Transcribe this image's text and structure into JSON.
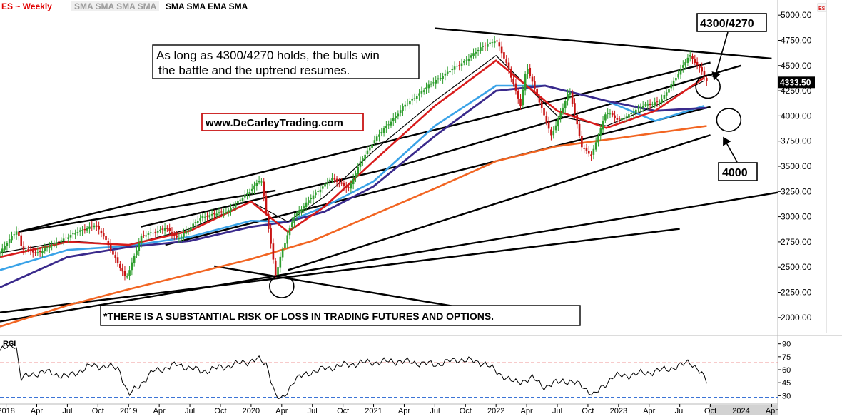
{
  "header": {
    "symbol": "ES ~ Weekly",
    "studies_gray": "SMA SMA SMA SMA",
    "studies_black": "SMA SMA EMA SMA",
    "corner_flag": "ES"
  },
  "annotations": {
    "main_note_line1": "As long as 4300/4270 holds, the bulls win",
    "main_note_line2": "the battle and the uptrend resumes.",
    "website": "www.DeCarleyTrading.com",
    "level_upper": "4300/4270",
    "level_lower": "4000",
    "disclaimer": "*THERE IS A SUBSTANTIAL RISK OF LOSS IN TRADING FUTURES AND OPTIONS."
  },
  "colors": {
    "up_candle": "#2e9e2e",
    "down_candle": "#c81414",
    "sma_black": "#000000",
    "ema_red": "#d81c1c",
    "sma_blue": "#3aa3e8",
    "sma_navy": "#3a2a8c",
    "sma_orange": "#f26522",
    "last_price_bg": "#000000",
    "rsi_upper_line": "#e03030",
    "rsi_lower_line": "#2060d0",
    "axis_text": "#000000"
  },
  "chart_data": [
    {
      "type": "line",
      "title": "ES ~ Weekly",
      "subtitle": "SMA SMA SMA SMA SMA SMA EMA SMA",
      "last_price": "4333.50",
      "y_ticks": [
        "5000.00",
        "4750.00",
        "4500.00",
        "4250.00",
        "4000.00",
        "3750.00",
        "3500.00",
        "3250.00",
        "3000.00",
        "2750.00",
        "2500.00",
        "2250.00",
        "2000.00"
      ],
      "ylim": [
        1850,
        5150
      ],
      "x_ticks": [
        "2018",
        "Apr",
        "Jul",
        "Oct",
        "2019",
        "Apr",
        "Jul",
        "Oct",
        "2020",
        "Apr",
        "Jul",
        "Oct",
        "2021",
        "Apr",
        "Jul",
        "Oct",
        "2022",
        "Apr",
        "Jul",
        "Oct",
        "2023",
        "Apr",
        "Jul",
        "Oct",
        "2024",
        "Apr"
      ],
      "xlim": [
        2017.95,
        2024.3
      ],
      "grid": false,
      "series": [
        {
          "name": "Price",
          "x": [
            2017.95,
            2018.05,
            2018.09,
            2018.13,
            2018.25,
            2018.5,
            2018.72,
            2018.8,
            2018.98,
            2019.1,
            2019.3,
            2019.4,
            2019.6,
            2019.8,
            2019.97,
            2020.08,
            2020.13,
            2020.2,
            2020.25,
            2020.35,
            2020.5,
            2020.65,
            2020.8,
            2020.9,
            2021.0,
            2021.25,
            2021.5,
            2021.75,
            2021.9,
            2022.0,
            2022.1,
            2022.2,
            2022.25,
            2022.45,
            2022.6,
            2022.7,
            2022.78,
            2022.9,
            2023.0,
            2023.2,
            2023.35,
            2023.5,
            2023.58,
            2023.68,
            2023.72
          ],
          "values": [
            2640,
            2810,
            2870,
            2680,
            2640,
            2800,
            2920,
            2800,
            2380,
            2800,
            2890,
            2780,
            3000,
            3050,
            3230,
            3380,
            2980,
            2420,
            2650,
            3000,
            3200,
            3380,
            3280,
            3560,
            3750,
            4100,
            4350,
            4550,
            4700,
            4750,
            4480,
            4100,
            4500,
            3800,
            4250,
            3700,
            3600,
            4050,
            3950,
            4100,
            4150,
            4450,
            4600,
            4450,
            4333.5
          ]
        },
        {
          "name": "SMA",
          "x": [
            2017.95,
            2018.5,
            2019.0,
            2019.5,
            2020.0,
            2020.3,
            2020.6,
            2021.0,
            2021.5,
            2022.0,
            2022.5,
            2022.9,
            2023.3,
            2023.7
          ],
          "values": [
            2640,
            2760,
            2720,
            2880,
            3150,
            2950,
            3200,
            3650,
            4150,
            4600,
            4000,
            3900,
            4100,
            4350
          ]
        },
        {
          "name": "EMA",
          "x": [
            2017.95,
            2018.5,
            2019.0,
            2019.5,
            2020.0,
            2020.3,
            2020.6,
            2021.0,
            2021.5,
            2022.0,
            2022.5,
            2022.9,
            2023.3,
            2023.7
          ],
          "values": [
            2600,
            2750,
            2720,
            2860,
            3150,
            2850,
            3100,
            3550,
            4100,
            4550,
            4050,
            3880,
            4050,
            4380
          ]
        },
        {
          "name": "SMA",
          "x": [
            2017.95,
            2018.5,
            2019.0,
            2019.5,
            2020.0,
            2020.3,
            2020.6,
            2021.0,
            2021.5,
            2022.0,
            2022.4,
            2022.9,
            2023.3,
            2023.7
          ],
          "values": [
            2470,
            2670,
            2710,
            2800,
            2960,
            2950,
            3100,
            3350,
            3900,
            4300,
            4300,
            4150,
            3950,
            4100
          ]
        },
        {
          "name": "SMA",
          "x": [
            2017.95,
            2018.5,
            2019.0,
            2019.5,
            2020.0,
            2020.3,
            2020.6,
            2021.0,
            2021.5,
            2022.0,
            2022.4,
            2022.9,
            2023.3,
            2023.72
          ],
          "values": [
            2300,
            2600,
            2700,
            2760,
            2900,
            2950,
            3050,
            3300,
            3800,
            4250,
            4300,
            4150,
            4050,
            4080
          ]
        },
        {
          "name": "SMA",
          "x": [
            2017.95,
            2018.5,
            2019.0,
            2019.5,
            2020.0,
            2020.5,
            2021.0,
            2021.5,
            2022.0,
            2022.5,
            2023.0,
            2023.72
          ],
          "values": [
            1910,
            2120,
            2280,
            2430,
            2580,
            2760,
            3020,
            3280,
            3550,
            3700,
            3780,
            3900
          ]
        }
      ],
      "trendlines": [
        {
          "x": [
            2018.1,
            2020.2
          ],
          "values": [
            2850,
            3260
          ]
        },
        {
          "x": [
            2018.1,
            2023.75
          ],
          "values": [
            2850,
            4530
          ]
        },
        {
          "x": [
            2019.1,
            2021.2
          ],
          "values": [
            2900,
            3500
          ]
        },
        {
          "x": [
            2021.2,
            2024.0
          ],
          "values": [
            3500,
            4500
          ]
        },
        {
          "x": [
            2019.3,
            2023.75
          ],
          "values": [
            2720,
            4090
          ]
        },
        {
          "x": [
            2020.3,
            2023.75
          ],
          "values": [
            2470,
            3810
          ]
        },
        {
          "x": [
            2017.95,
            2024.3
          ],
          "values": [
            1960,
            3240
          ]
        },
        {
          "x": [
            2017.95,
            2023.5
          ],
          "values": [
            2050,
            2880
          ]
        },
        {
          "x": [
            2019.7,
            2022.2
          ],
          "values": [
            2510,
            2000
          ]
        },
        {
          "x": [
            2021.5,
            2024.25
          ],
          "values": [
            4870,
            4570
          ]
        }
      ],
      "circles": [
        {
          "x": 2020.25,
          "y": 2310
        },
        {
          "x": 2023.73,
          "y": 4290
        },
        {
          "x": 2023.9,
          "y": 3960
        }
      ]
    },
    {
      "type": "line",
      "title": "RSI",
      "y_ticks": [
        "90",
        "75",
        "60",
        "45",
        "30"
      ],
      "ylim": [
        22,
        98
      ],
      "reference_lines": [
        68,
        28
      ],
      "series": [
        {
          "name": "RSI",
          "x": [
            2017.95,
            2018.05,
            2018.08,
            2018.12,
            2018.3,
            2018.5,
            2018.7,
            2018.92,
            2019.0,
            2019.2,
            2019.4,
            2019.6,
            2019.8,
            2020.05,
            2020.13,
            2020.2,
            2020.25,
            2020.35,
            2020.5,
            2020.7,
            2020.9,
            2021.2,
            2021.5,
            2021.7,
            2021.9,
            2022.0,
            2022.15,
            2022.3,
            2022.4,
            2022.55,
            2022.7,
            2022.8,
            2022.95,
            2023.1,
            2023.3,
            2023.5,
            2023.58,
            2023.65,
            2023.72
          ],
          "values": [
            82,
            88,
            90,
            50,
            58,
            52,
            65,
            62,
            30,
            58,
            66,
            58,
            64,
            72,
            66,
            30,
            24,
            48,
            58,
            64,
            68,
            70,
            66,
            72,
            68,
            58,
            45,
            50,
            40,
            48,
            42,
            30,
            52,
            54,
            58,
            64,
            70,
            60,
            46
          ]
        }
      ]
    }
  ]
}
